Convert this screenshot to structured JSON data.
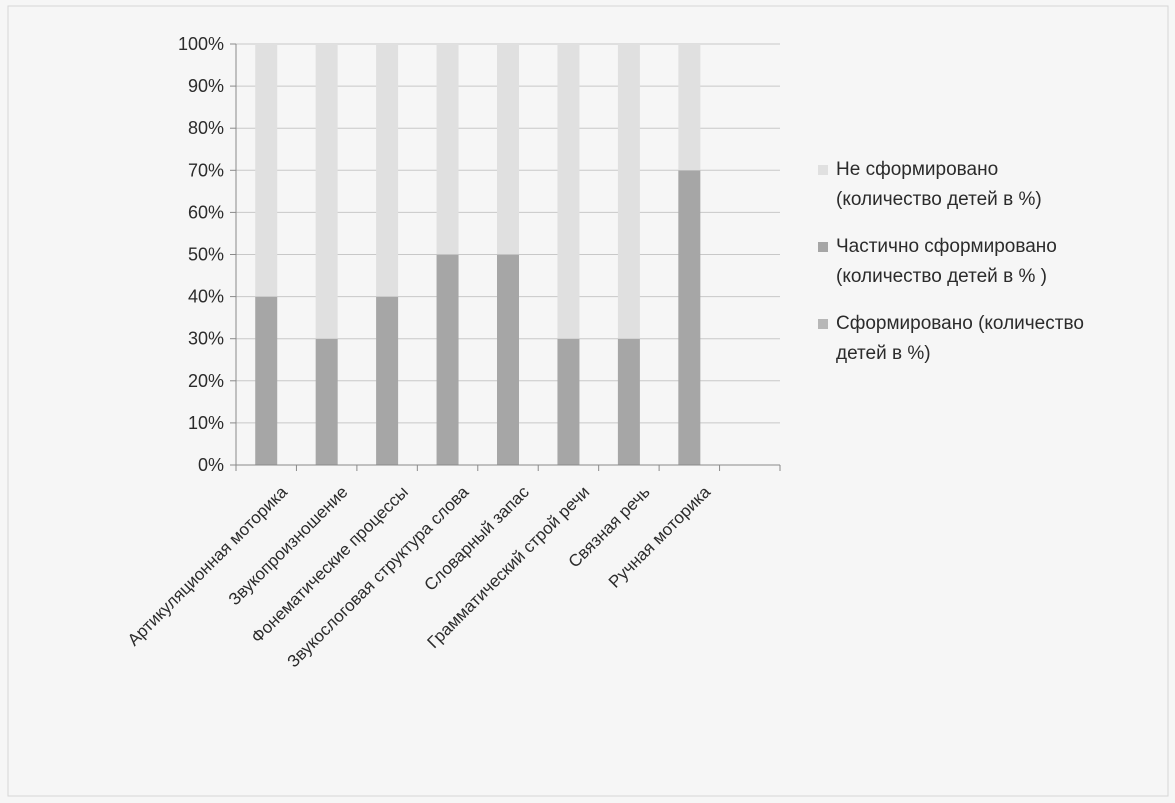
{
  "chart_data": {
    "type": "bar",
    "stacked": true,
    "categories": [
      "Артикуляционная моторика",
      "Звукопроизношение",
      "Фонематические процессы",
      "Звукослоговая структура слова",
      "Словарный запас",
      "Грамматический строй речи",
      "Связная речь",
      "Ручная моторика"
    ],
    "series": [
      {
        "name": "Сформировано (количество детей в %)",
        "values": [
          0,
          0,
          0,
          0,
          0,
          0,
          0,
          0
        ],
        "color": "#b7b7b7"
      },
      {
        "name": "Частично сформировано (количество детей в % )",
        "values": [
          40,
          30,
          40,
          50,
          50,
          30,
          30,
          70
        ],
        "color": "#a6a6a6"
      },
      {
        "name": "Не сформировано (количество детей в %)",
        "values": [
          60,
          70,
          60,
          50,
          50,
          70,
          70,
          30
        ],
        "color": "#e0e0e0"
      }
    ],
    "y_ticks": [
      "0%",
      "10%",
      "20%",
      "30%",
      "40%",
      "50%",
      "60%",
      "70%",
      "80%",
      "90%",
      "100%"
    ],
    "ylim": [
      0,
      100
    ],
    "grid": true,
    "legend_position": "right",
    "legend_order": [
      2,
      1,
      0
    ],
    "title": "",
    "xlabel": "",
    "ylabel": ""
  },
  "legend": {
    "items": [
      {
        "label": "Не сформировано\n(количество детей в %)",
        "color": "#e0e0e0"
      },
      {
        "label": "Частично сформировано\n(количество детей в % )",
        "color": "#a6a6a6"
      },
      {
        "label": "Сформировано (количество\nдетей в %)",
        "color": "#b7b7b7"
      }
    ]
  }
}
